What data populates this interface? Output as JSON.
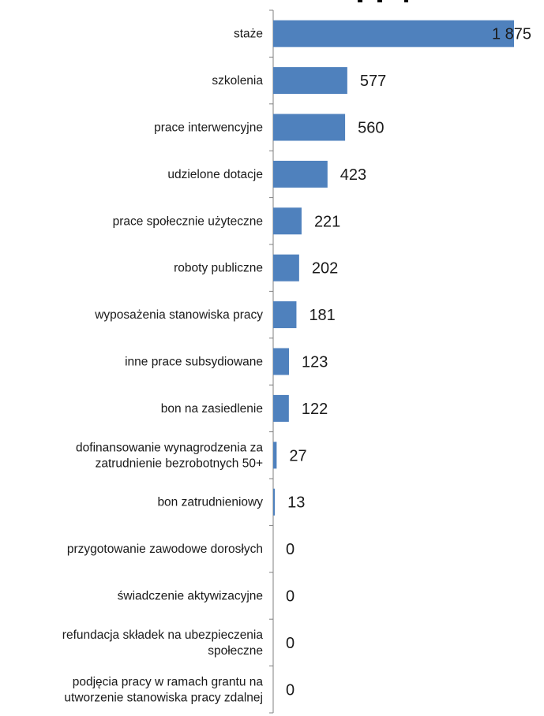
{
  "chart_data": {
    "type": "bar",
    "orientation": "horizontal",
    "title": "",
    "xlabel": "",
    "ylabel": "",
    "xlim": [
      0,
      1875
    ],
    "bar_color": "#4F81BD",
    "grid": false,
    "legend": "none",
    "categories": [
      [
        "staże"
      ],
      [
        "szkolenia"
      ],
      [
        "prace interwencyjne"
      ],
      [
        "udzielone dotacje"
      ],
      [
        "prace społecznie użyteczne"
      ],
      [
        "roboty publiczne"
      ],
      [
        "wyposażenia stanowiska pracy"
      ],
      [
        "inne prace subsydiowane"
      ],
      [
        "bon na zasiedlenie"
      ],
      [
        "dofinansowanie wynagrodzenia za",
        "zatrudnienie bezrobotnych 50+"
      ],
      [
        "bon zatrudnieniowy"
      ],
      [
        "przygotowanie zawodowe dorosłych"
      ],
      [
        "świadczenie aktywizacyjne"
      ],
      [
        "refundacja składek na ubezpieczenia",
        "społeczne"
      ],
      [
        "podjęcia pracy w ramach grantu na",
        "utworzenie stanowiska pracy zdalnej"
      ]
    ],
    "values": [
      1875,
      577,
      560,
      423,
      221,
      202,
      181,
      123,
      122,
      27,
      13,
      0,
      0,
      0,
      0
    ],
    "value_labels": [
      "1 875",
      "577",
      "560",
      "423",
      "221",
      "202",
      "181",
      "123",
      "122",
      "27",
      "13",
      "0",
      "0",
      "0",
      "0"
    ]
  }
}
